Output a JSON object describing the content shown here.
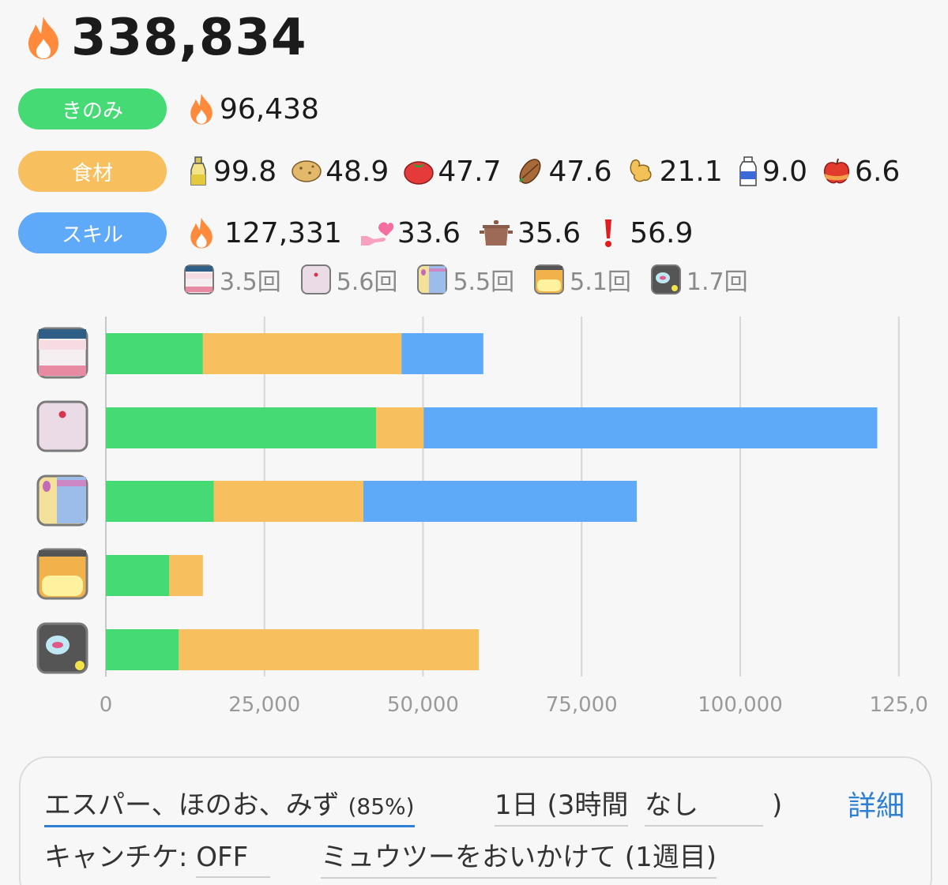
{
  "total": {
    "icon": "flame-icon",
    "value": "338,834"
  },
  "berry": {
    "label": "きのみ",
    "icon": "flame-icon",
    "value": "96,438",
    "color": "#45da74"
  },
  "ingredients": {
    "label": "食材",
    "color": "#f8bf5f",
    "items": [
      {
        "icon": "oil-icon",
        "value": "99.8"
      },
      {
        "icon": "potato-icon",
        "value": "48.9"
      },
      {
        "icon": "tomato-icon",
        "value": "47.7"
      },
      {
        "icon": "cacao-icon",
        "value": "47.6"
      },
      {
        "icon": "ginger-icon",
        "value": "21.1"
      },
      {
        "icon": "milk-icon",
        "value": "9.0"
      },
      {
        "icon": "apple-icon",
        "value": "6.6"
      }
    ]
  },
  "skill": {
    "label": "スキル",
    "color": "#5eaaf8",
    "items": [
      {
        "icon": "flame-icon",
        "value": "127,331"
      },
      {
        "icon": "heart-hand-icon",
        "value": "33.6"
      },
      {
        "icon": "pot-icon",
        "value": "35.6"
      },
      {
        "icon": "exclamation-icon",
        "value": "56.9"
      }
    ]
  },
  "meals": [
    {
      "icon": "meal-icon-1",
      "value": "3.5回"
    },
    {
      "icon": "meal-icon-2",
      "value": "5.6回"
    },
    {
      "icon": "meal-icon-3",
      "value": "5.5回"
    },
    {
      "icon": "meal-icon-4",
      "value": "5.1回"
    },
    {
      "icon": "meal-icon-5",
      "value": "1.7回"
    }
  ],
  "chart_data": {
    "type": "bar",
    "orientation": "horizontal",
    "stacked": true,
    "categories": [
      "meal-icon-1",
      "meal-icon-2",
      "meal-icon-3",
      "meal-icon-4",
      "meal-icon-5"
    ],
    "series": [
      {
        "color": "#45da74",
        "values": [
          15300,
          42600,
          17000,
          10000,
          11500
        ]
      },
      {
        "color": "#f8bf5f",
        "values": [
          31300,
          7500,
          23600,
          5300,
          47300
        ]
      },
      {
        "color": "#5eaaf8",
        "values": [
          12900,
          71500,
          43100,
          0,
          0
        ]
      }
    ],
    "xlim": [
      0,
      125000
    ],
    "xticks": [
      "0",
      "25,000",
      "50,000",
      "75,000",
      "100,000",
      "125,0"
    ],
    "grid": true
  },
  "settings": {
    "type_label": "エスパー、ほのお、みず",
    "type_pct": "(85%)",
    "period": "1日 (3時間",
    "period_option": "なし",
    "period_close": ")",
    "detail": "詳細",
    "candy_label": "キャンチケ: ",
    "candy_value": "OFF",
    "event": "ミュウツーをおいかけて (1週目)"
  }
}
